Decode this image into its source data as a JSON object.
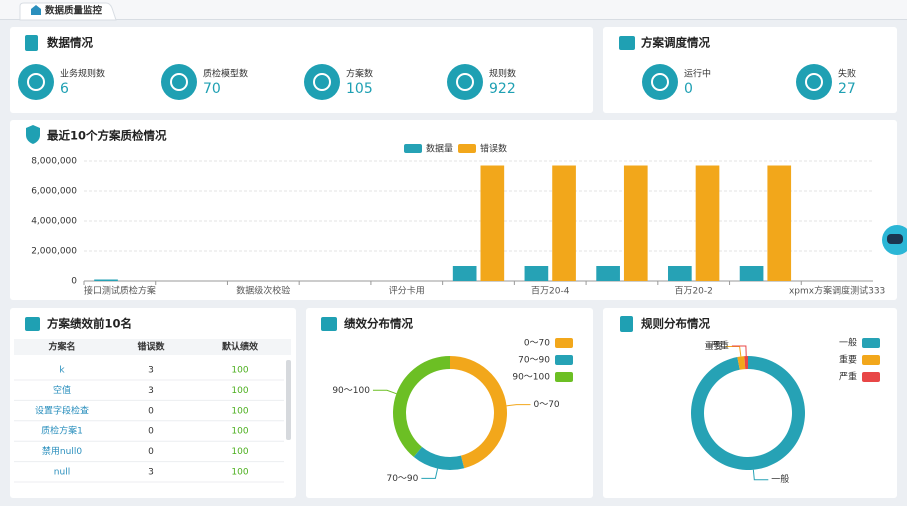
{
  "tab": "数据质量监控",
  "data_overview": {
    "title": "数据情况",
    "stats": [
      {
        "label": "业务规则数",
        "value": 6
      },
      {
        "label": "质检模型数",
        "value": 70
      },
      {
        "label": "方案数",
        "value": 105
      },
      {
        "label": "规则数",
        "value": 922
      }
    ]
  },
  "schedule": {
    "title": "方案调度情况",
    "stats": [
      {
        "label": "运行中",
        "value": 0
      },
      {
        "label": "失败",
        "value": 27
      }
    ]
  },
  "chart_data": [
    {
      "type": "bar",
      "title": "最近10个方案质检情况",
      "categories": [
        "接口测试质检方案",
        null,
        "数据级次校验",
        null,
        "评分卡用",
        null,
        "百万20-4",
        null,
        "百万20-2",
        null,
        "xpmx方案调度测试333"
      ],
      "series": [
        {
          "name": "数据量",
          "color": "#26a2b5",
          "values": [
            100000,
            0,
            0,
            0,
            0,
            1000000,
            1000000,
            1000000,
            1000000,
            1000000,
            0
          ]
        },
        {
          "name": "错误数",
          "color": "#f2a71b",
          "values": [
            0,
            0,
            0,
            0,
            0,
            7700000,
            7700000,
            7700000,
            7700000,
            7700000,
            0
          ]
        }
      ],
      "ylim": [
        0,
        8000000
      ],
      "yticks": [
        0,
        {
          "value": 2000000,
          "label": "2,000,000"
        },
        {
          "value": 4000000,
          "label": "4,000,000"
        },
        {
          "value": 6000000,
          "label": "6,000,000"
        },
        {
          "value": 8000000,
          "label": "8,000,000"
        }
      ],
      "grid": true,
      "legend": "top"
    },
    {
      "type": "donut",
      "title": "绩效分布情况",
      "categories": [
        "0～70",
        "70～90",
        "90～100"
      ],
      "values": [
        46,
        15,
        39
      ],
      "colors": [
        "#f2a71b",
        "#26a2b5",
        "#6cbf24"
      ],
      "legend": "top-right"
    },
    {
      "type": "donut",
      "title": "规则分布情况",
      "categories": [
        "一般",
        "重要",
        "严重"
      ],
      "values": [
        97,
        2,
        1
      ],
      "colors": [
        "#26a2b5",
        "#f2a71b",
        "#e84646"
      ],
      "legend": "top-right"
    }
  ],
  "table": {
    "title": "方案绩效前10名",
    "header": [
      "方案名",
      "错误数",
      "默认绩效"
    ],
    "rows": [
      [
        "k",
        3,
        100
      ],
      [
        "空值",
        3,
        100
      ],
      [
        "设置字段检查",
        0,
        100
      ],
      [
        "质检方案1",
        0,
        100
      ],
      [
        "禁用null0",
        0,
        100
      ],
      [
        "null",
        3,
        100
      ]
    ]
  }
}
